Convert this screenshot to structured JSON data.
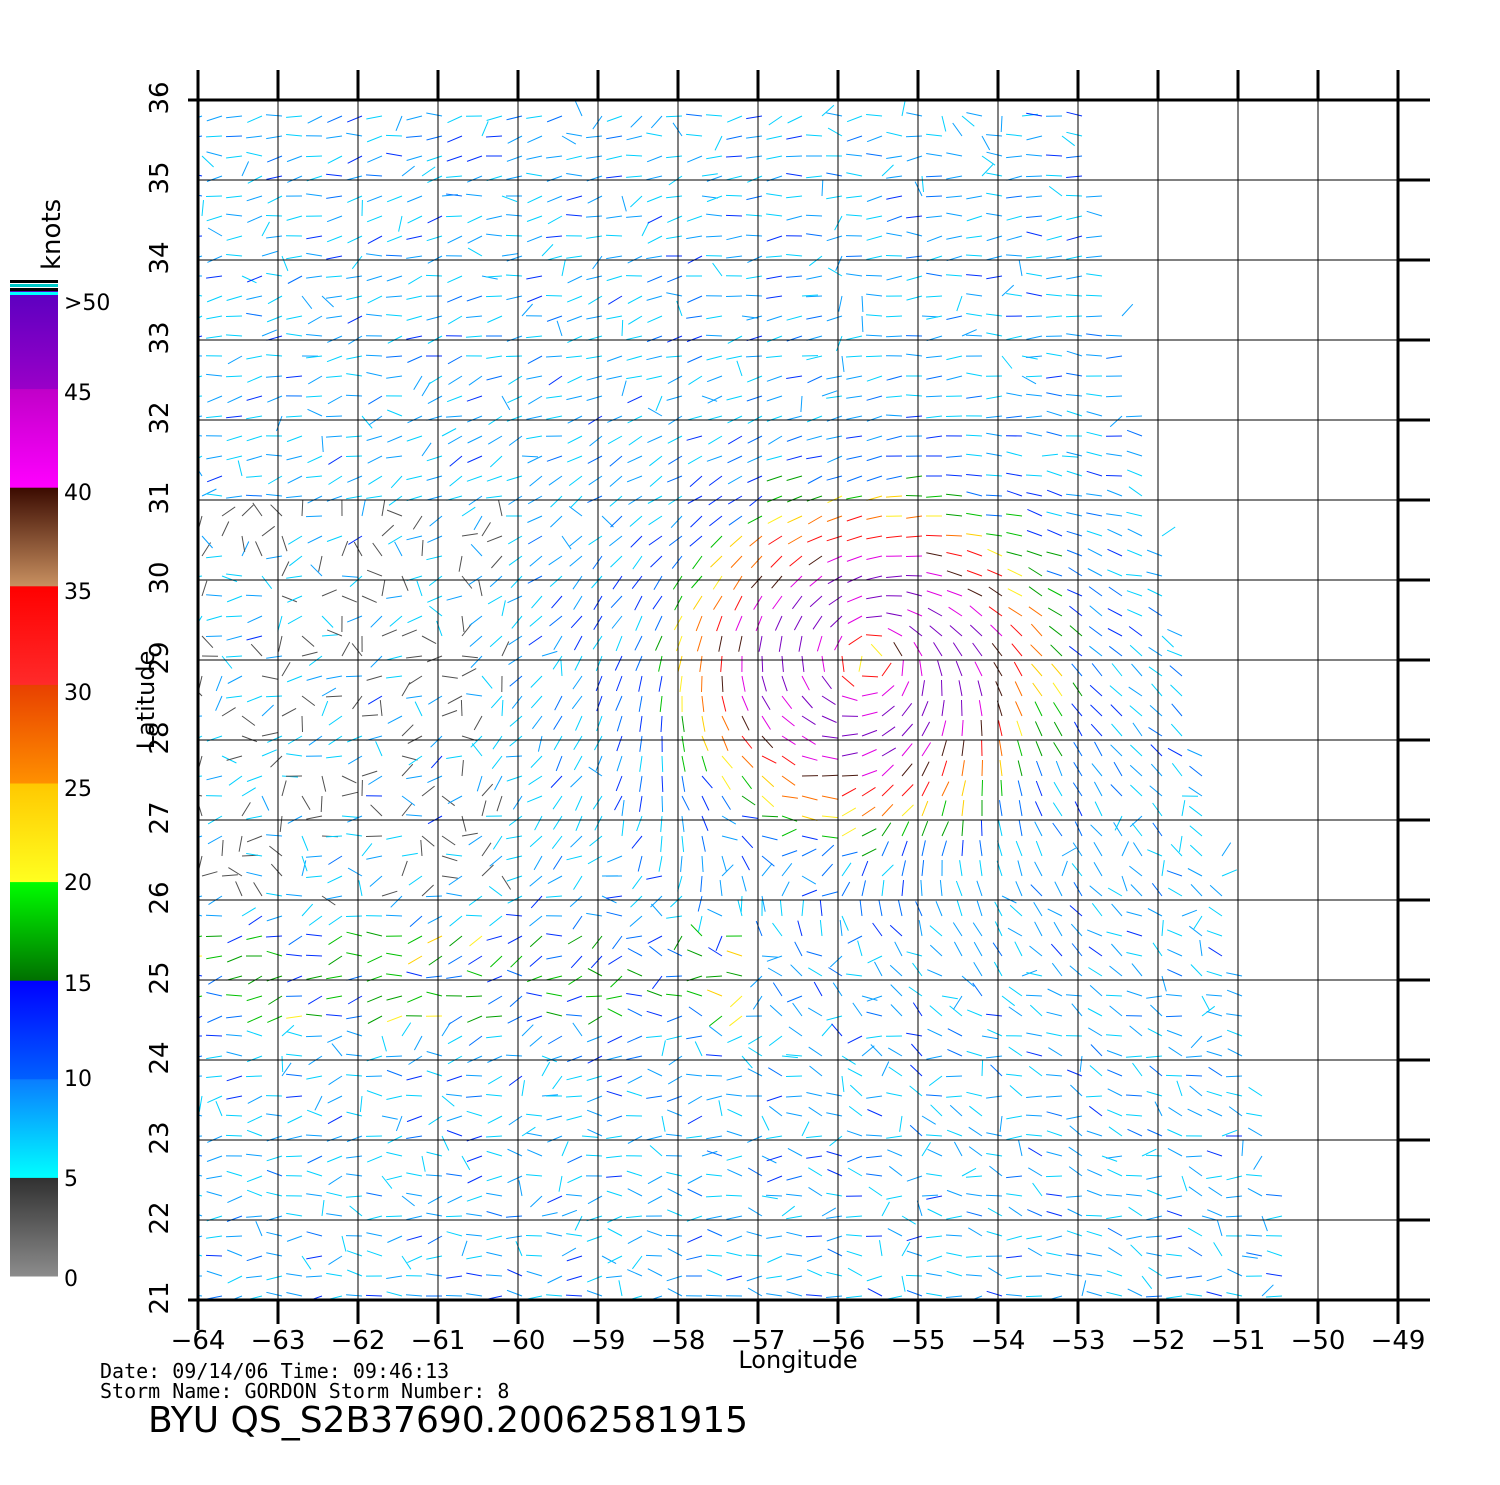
{
  "map": {
    "type": "wind-vector-map",
    "lon_range": [
      -64,
      -49
    ],
    "lat_range": [
      21,
      36
    ],
    "lon_ticks": [
      "−64",
      "−63",
      "−62",
      "−61",
      "−60",
      "−59",
      "−58",
      "−57",
      "−56",
      "−55",
      "−54",
      "−53",
      "−52",
      "−51",
      "−50",
      "−49"
    ],
    "lat_ticks": [
      "21",
      "22",
      "23",
      "24",
      "25",
      "26",
      "27",
      "28",
      "29",
      "30",
      "31",
      "32",
      "33",
      "34",
      "35",
      "36"
    ],
    "xlabel": "Longitude",
    "ylabel": "Latitude",
    "grid": true,
    "storm_center": {
      "lon": -55.6,
      "lat": 29.0
    },
    "swath_edges": [
      {
        "lon": -52.9,
        "lat": 36
      },
      {
        "lon": -50.2,
        "lat": 21
      }
    ]
  },
  "colorbar": {
    "unit_label": "knots",
    "tick_labels": [
      ">50",
      "45",
      "40",
      "35",
      "30",
      "25",
      "20",
      "15",
      "10",
      "5",
      "0"
    ],
    "bands": [
      {
        "from": 0,
        "to": 5,
        "top": "#303030",
        "bottom": "#8c8c8c"
      },
      {
        "from": 5,
        "to": 10,
        "top": "#0a7cff",
        "bottom": "#00ffff"
      },
      {
        "from": 10,
        "to": 15,
        "top": "#0000ff",
        "bottom": "#0060ff"
      },
      {
        "from": 15,
        "to": 20,
        "top": "#00ff00",
        "bottom": "#007000"
      },
      {
        "from": 20,
        "to": 25,
        "top": "#ffc800",
        "bottom": "#ffff20"
      },
      {
        "from": 25,
        "to": 30,
        "top": "#e84000",
        "bottom": "#ff9000"
      },
      {
        "from": 30,
        "to": 35,
        "top": "#ff0000",
        "bottom": "#ff2a2a"
      },
      {
        "from": 35,
        "to": 40,
        "top": "#3a0a00",
        "bottom": "#c89060"
      },
      {
        "from": 40,
        "to": 45,
        "top": "#c000c8",
        "bottom": "#ff00ff"
      },
      {
        "from": 45,
        "to": 50,
        "top": "#5a00c0",
        "bottom": "#9a00c8"
      }
    ],
    "cap_colors": [
      "#000000",
      "#00c8c8",
      "#000000",
      "#00ffff"
    ]
  },
  "footer": {
    "date_time": "Date: 09/14/06   Time: 09:46:13",
    "storm": "Storm  Name: GORDON   Storm  Number: 8",
    "product": "BYU  QS_S2B37690.20062581915"
  },
  "colors": {
    "grid": "#000000",
    "frame": "#000000"
  }
}
